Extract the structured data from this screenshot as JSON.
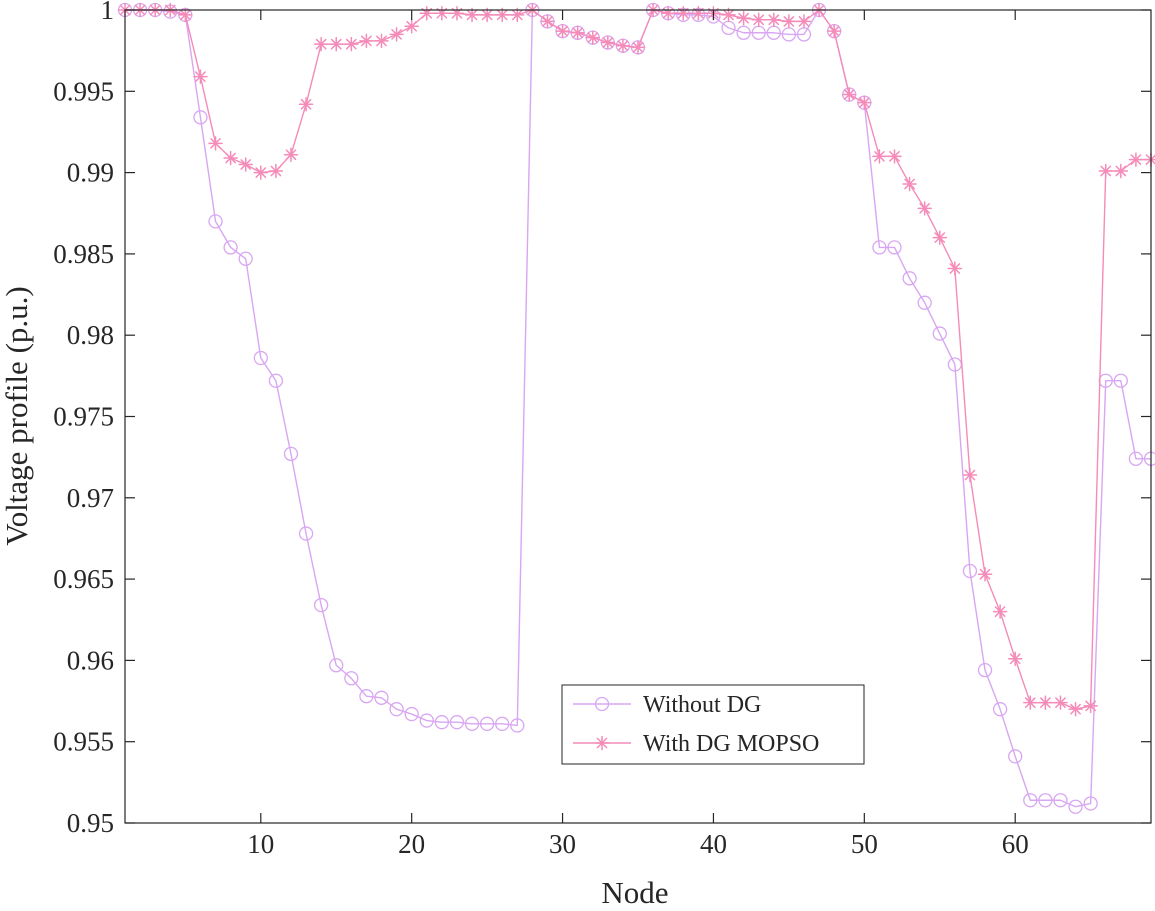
{
  "chart_data": {
    "type": "line",
    "title": "",
    "xlabel": "Node",
    "ylabel": "Voltage profile (p.u.)",
    "xlim": [
      1,
      69
    ],
    "ylim": [
      0.95,
      1
    ],
    "xticks": [
      10,
      20,
      30,
      40,
      50,
      60
    ],
    "xtick_labels": [
      "10",
      "20",
      "30",
      "40",
      "50",
      "60"
    ],
    "yticks": [
      0.95,
      0.955,
      0.96,
      0.965,
      0.97,
      0.975,
      0.98,
      0.985,
      0.99,
      0.995,
      1
    ],
    "ytick_labels": [
      "0.95",
      "0.955",
      "0.96",
      "0.965",
      "0.97",
      "0.975",
      "0.98",
      "0.985",
      "0.99",
      "0.995",
      "1"
    ],
    "grid": false,
    "legend_position": "bottom-center",
    "x": [
      1,
      2,
      3,
      4,
      5,
      6,
      7,
      8,
      9,
      10,
      11,
      12,
      13,
      14,
      15,
      16,
      17,
      18,
      19,
      20,
      21,
      22,
      23,
      24,
      25,
      26,
      27,
      28,
      29,
      30,
      31,
      32,
      33,
      34,
      35,
      36,
      37,
      38,
      39,
      40,
      41,
      42,
      43,
      44,
      45,
      46,
      47,
      48,
      49,
      50,
      51,
      52,
      53,
      54,
      55,
      56,
      57,
      58,
      59,
      60,
      61,
      62,
      63,
      64,
      65,
      66,
      67,
      68,
      69
    ],
    "series": [
      {
        "name": "Without DG",
        "color": "#d8a6f2",
        "marker": "circle",
        "values": [
          1.0,
          1.0,
          1.0,
          0.9999,
          0.9997,
          0.9934,
          0.987,
          0.9854,
          0.9847,
          0.9786,
          0.9772,
          0.9727,
          0.9678,
          0.9634,
          0.9597,
          0.9589,
          0.9578,
          0.9577,
          0.957,
          0.9567,
          0.9563,
          0.9562,
          0.9562,
          0.9561,
          0.9561,
          0.9561,
          0.956,
          1.0,
          0.9993,
          0.9987,
          0.9986,
          0.9983,
          0.998,
          0.9978,
          0.9977,
          1.0,
          0.9998,
          0.9997,
          0.9997,
          0.9996,
          0.9989,
          0.9986,
          0.9986,
          0.9986,
          0.9985,
          0.9985,
          1.0,
          0.9987,
          0.9948,
          0.9943,
          0.9854,
          0.9854,
          0.9835,
          0.982,
          0.9801,
          0.9782,
          0.9655,
          0.9594,
          0.957,
          0.9541,
          0.9514,
          0.9514,
          0.9514,
          0.951,
          0.9512,
          0.9772,
          0.9772,
          0.9724,
          0.9724
        ]
      },
      {
        "name": "With DG MOPSO",
        "color": "#f48bb8",
        "marker": "star",
        "values": [
          1.0,
          1.0,
          1.0,
          1.0,
          0.9997,
          0.9959,
          0.9918,
          0.9909,
          0.9905,
          0.99,
          0.9901,
          0.9911,
          0.9942,
          0.9979,
          0.9979,
          0.9979,
          0.9981,
          0.9981,
          0.9985,
          0.999,
          0.9998,
          0.9998,
          0.9998,
          0.9997,
          0.9997,
          0.9997,
          0.9997,
          1.0,
          0.9993,
          0.9987,
          0.9986,
          0.9983,
          0.998,
          0.9978,
          0.9977,
          1.0,
          0.9998,
          0.9998,
          0.9998,
          0.9998,
          0.9997,
          0.9995,
          0.9994,
          0.9994,
          0.9993,
          0.9993,
          1.0,
          0.9987,
          0.9948,
          0.9943,
          0.991,
          0.991,
          0.9893,
          0.9878,
          0.986,
          0.9841,
          0.9714,
          0.9653,
          0.963,
          0.9601,
          0.9574,
          0.9574,
          0.9574,
          0.957,
          0.9572,
          0.9901,
          0.9901,
          0.9908,
          0.9908
        ]
      }
    ]
  }
}
